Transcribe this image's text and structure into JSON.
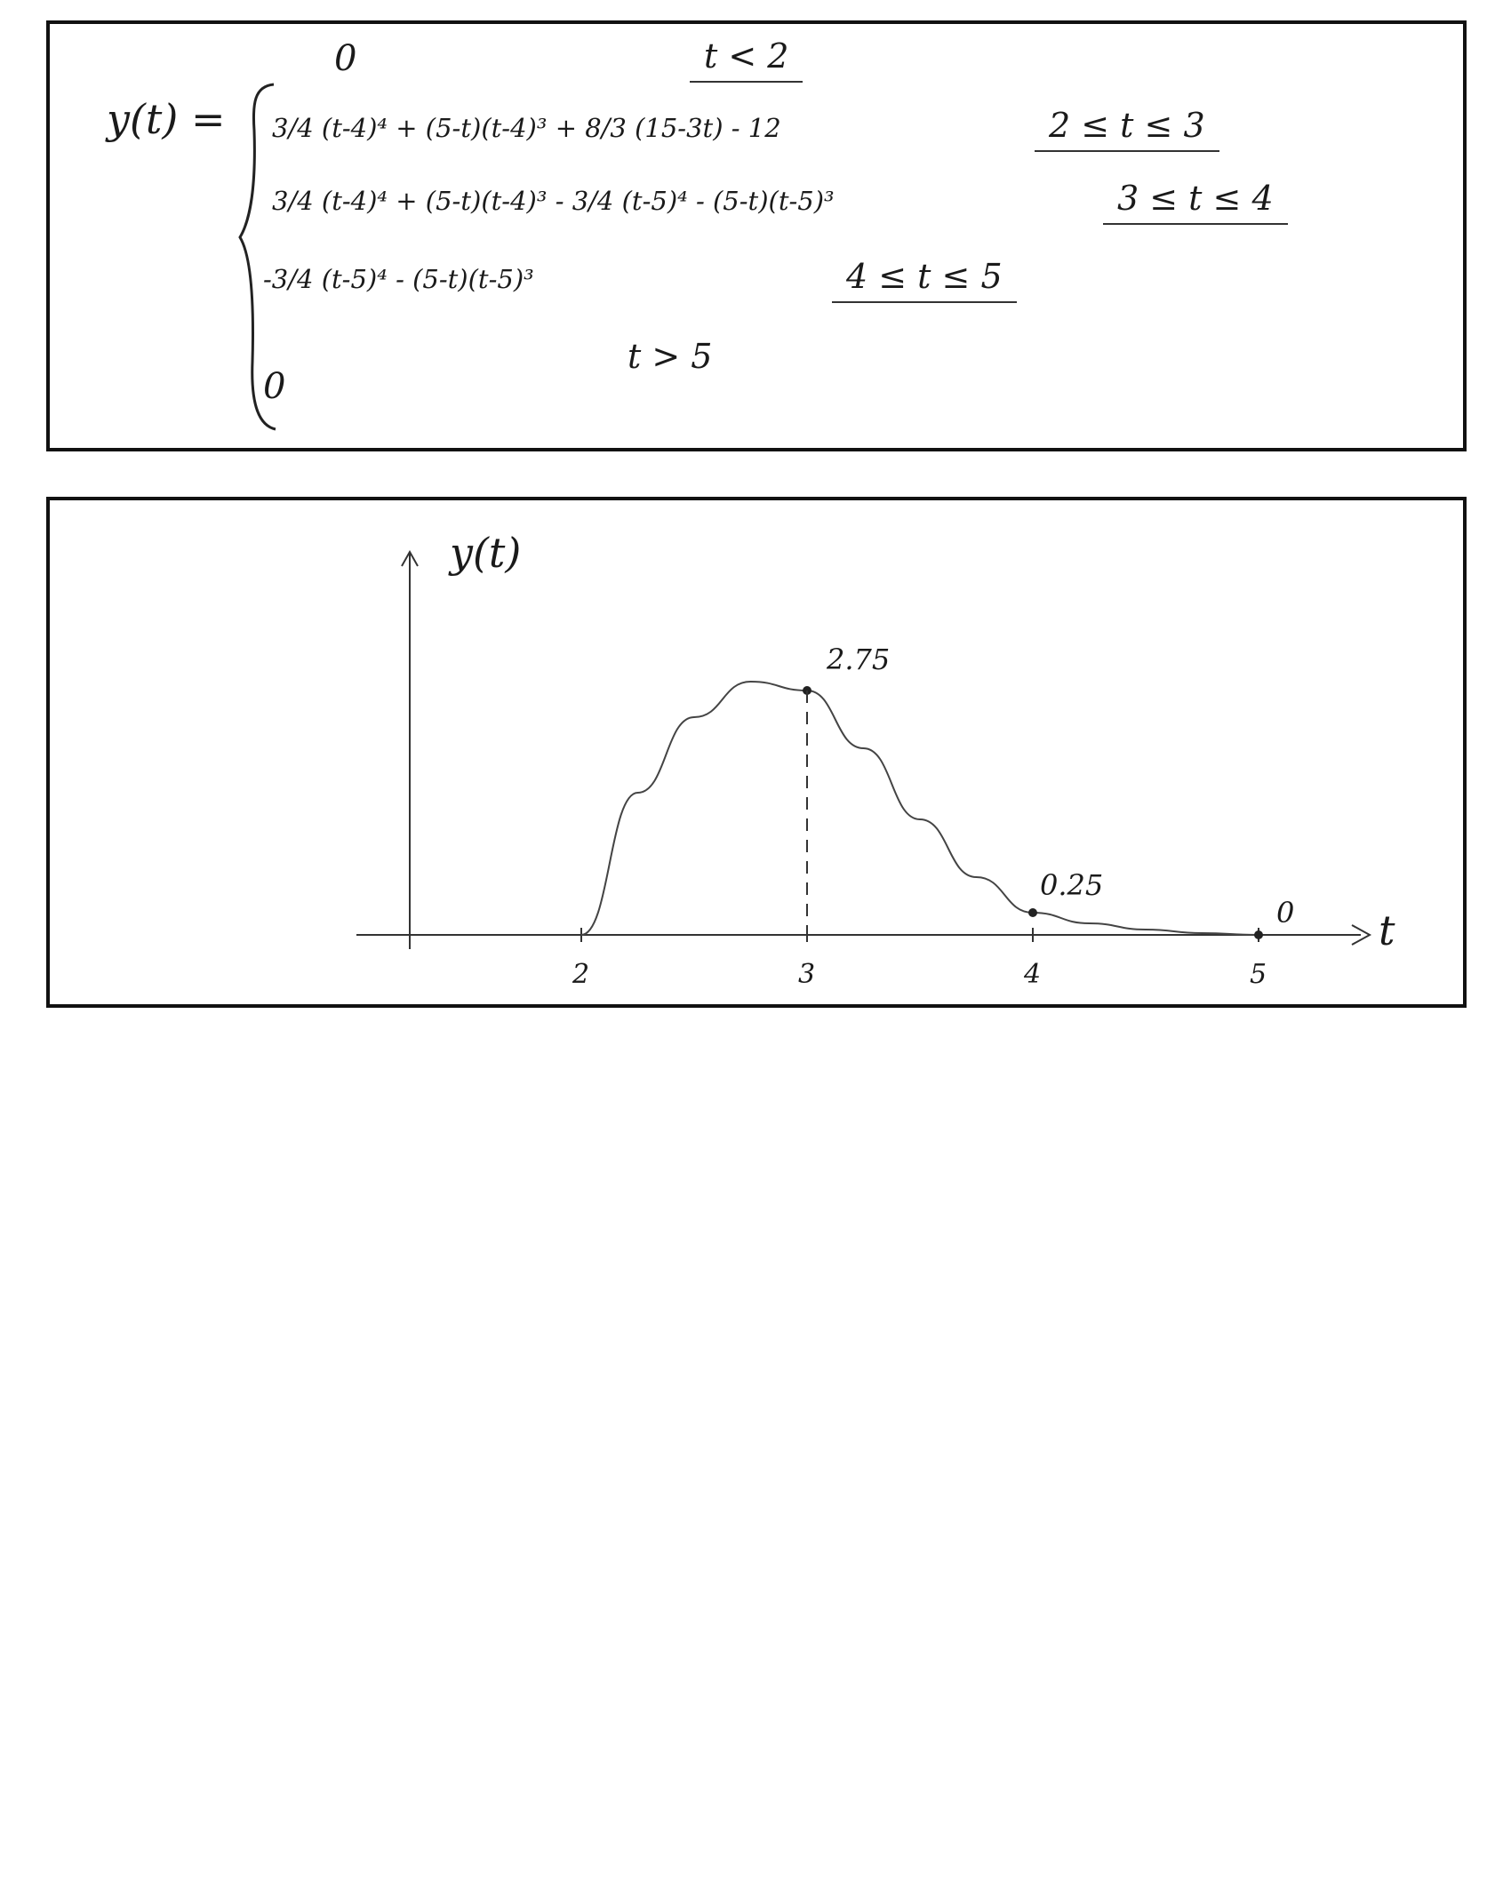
{
  "equation": {
    "lhs": "y(t) =",
    "rows": [
      {
        "expr": "0",
        "cond": "t < 2"
      },
      {
        "expr": "3/4 (t-4)⁴ + (5-t)(t-4)³ + 8/3 (15-3t) - 12",
        "cond": "2 ≤ t ≤ 3"
      },
      {
        "expr": "3/4 (t-4)⁴ + (5-t)(t-4)³ - 3/4 (t-5)⁴ - (5-t)(t-5)³",
        "cond": "3 ≤ t ≤ 4"
      },
      {
        "expr": "-3/4 (t-5)⁴ - (5-t)(t-5)³",
        "cond": "4 ≤ t ≤ 5"
      },
      {
        "expr": "0",
        "cond": "t > 5"
      }
    ]
  },
  "chart_data": {
    "type": "line",
    "ylabel": "y(t)",
    "xlabel": "t",
    "x_ticks": [
      "2",
      "3",
      "4",
      "5"
    ],
    "series": [
      {
        "x": [
          2,
          2.25,
          2.5,
          2.75,
          3,
          3.25,
          3.5,
          3.75,
          4,
          4.25,
          4.5,
          4.75,
          5
        ],
        "y": [
          0,
          1.6,
          2.45,
          2.85,
          2.75,
          2.1,
          1.3,
          0.65,
          0.25,
          0.13,
          0.06,
          0.02,
          0
        ]
      }
    ],
    "annotations": [
      {
        "x": 3,
        "y": 2.75,
        "label": "2.75"
      },
      {
        "x": 4,
        "y": 0.25,
        "label": "0.25"
      },
      {
        "x": 5,
        "y": 0,
        "label": "0"
      }
    ]
  }
}
